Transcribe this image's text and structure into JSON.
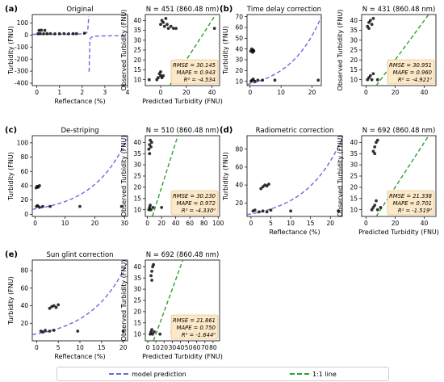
{
  "chart_data": [
    {
      "id": "a1",
      "type": "scatter",
      "panel_label": "(a)",
      "title": "Original",
      "xlabel": "Reflectance (%)",
      "ylabel": "Turbidity (FNU)",
      "xlim": [
        -0.2,
        4.0
      ],
      "ylim": [
        -420,
        170
      ],
      "xticks": [
        0,
        1,
        2,
        3,
        4
      ],
      "yticks": [
        -400,
        -300,
        -200,
        -100,
        0,
        100
      ],
      "model": "asym",
      "points": [
        [
          0.05,
          10
        ],
        [
          0.15,
          12
        ],
        [
          0.3,
          10
        ],
        [
          0.45,
          11
        ],
        [
          0.6,
          12
        ],
        [
          0.8,
          10
        ],
        [
          1.0,
          11
        ],
        [
          1.2,
          12
        ],
        [
          1.4,
          10
        ],
        [
          1.6,
          11
        ],
        [
          1.75,
          11
        ],
        [
          2.1,
          15
        ],
        [
          0.1,
          38
        ],
        [
          0.2,
          40
        ],
        [
          0.35,
          38
        ]
      ]
    },
    {
      "id": "a2",
      "type": "scatter",
      "title": "N = 451 (860.48 nm)",
      "xlabel": "Predicted Turbidity (FNU)",
      "ylabel": "Observed Turbidity (FNU)",
      "xlim": [
        -12,
        46
      ],
      "ylim": [
        7,
        43
      ],
      "xticks": [
        0,
        20,
        40
      ],
      "yticks": [
        10,
        15,
        20,
        25,
        30,
        35,
        40
      ],
      "stats": {
        "rmse": "RMSE = 30.145",
        "mape": "MAPE = 0.943",
        "r2": "R² = -4.534"
      },
      "points": [
        [
          -3,
          10
        ],
        [
          -2,
          11
        ],
        [
          0,
          12
        ],
        [
          1,
          11
        ],
        [
          -1,
          13
        ],
        [
          0,
          14
        ],
        [
          2,
          12
        ],
        [
          0,
          38
        ],
        [
          1,
          40
        ],
        [
          2,
          39
        ],
        [
          3,
          37
        ],
        [
          4,
          41
        ],
        [
          5,
          38
        ],
        [
          6,
          36
        ],
        [
          8,
          37
        ],
        [
          10,
          36
        ],
        [
          12,
          36
        ],
        [
          -9,
          10
        ],
        [
          42,
          36
        ]
      ]
    },
    {
      "id": "b1",
      "type": "scatter",
      "panel_label": "(b)",
      "title": "Time delay correction",
      "xlabel": "",
      "ylabel": "Turbidity (FNU)",
      "xlim": [
        -1,
        23
      ],
      "ylim": [
        6,
        72
      ],
      "xticks": [
        0,
        10,
        20
      ],
      "yticks": [
        10,
        20,
        30,
        40,
        50,
        60,
        70
      ],
      "model": "exp",
      "points": [
        [
          0.2,
          38
        ],
        [
          0.5,
          40
        ],
        [
          0.8,
          37
        ],
        [
          1.0,
          39
        ],
        [
          1.2,
          38
        ],
        [
          0.3,
          10
        ],
        [
          0.6,
          11
        ],
        [
          1.0,
          12
        ],
        [
          1.5,
          10
        ],
        [
          2.5,
          11
        ],
        [
          4,
          11
        ],
        [
          8,
          11
        ],
        [
          22,
          11
        ]
      ]
    },
    {
      "id": "b2",
      "type": "scatter",
      "title": "N = 431 (860.48 nm)",
      "xlabel": "",
      "ylabel": "Observed Turbidity (FNU)",
      "xlim": [
        -3,
        48
      ],
      "ylim": [
        7,
        43
      ],
      "xticks": [
        0,
        20,
        40
      ],
      "yticks": [
        10,
        15,
        20,
        25,
        30,
        35,
        40
      ],
      "stats": {
        "rmse": "RMSE = 30.951",
        "mape": "MAPE = 0.960",
        "r2": "R² = -4.921⁰"
      },
      "points": [
        [
          1,
          37
        ],
        [
          2,
          39
        ],
        [
          3,
          40
        ],
        [
          4,
          38
        ],
        [
          5,
          41
        ],
        [
          2,
          36
        ],
        [
          1,
          10
        ],
        [
          2,
          11
        ],
        [
          3,
          12
        ],
        [
          4,
          10
        ],
        [
          5,
          13
        ],
        [
          8,
          10
        ],
        [
          22,
          10
        ]
      ]
    },
    {
      "id": "c1",
      "type": "scatter",
      "panel_label": "(c)",
      "title": "De-striping",
      "xlabel": "",
      "ylabel": "Turbidity (FNU)",
      "xlim": [
        -1,
        31
      ],
      "ylim": [
        -3,
        110
      ],
      "xticks": [
        0,
        10,
        20,
        30
      ],
      "yticks": [
        0,
        20,
        40,
        60,
        80,
        100
      ],
      "model": "exp",
      "points": [
        [
          0.3,
          37
        ],
        [
          0.6,
          39
        ],
        [
          1.0,
          38
        ],
        [
          1.4,
          40
        ],
        [
          0.4,
          11
        ],
        [
          0.8,
          12
        ],
        [
          1.4,
          10
        ],
        [
          2.5,
          11
        ],
        [
          5,
          11
        ],
        [
          15,
          11
        ],
        [
          29,
          11
        ]
      ]
    },
    {
      "id": "c2",
      "type": "scatter",
      "title": "N = 510 (860.48 nm)",
      "xlabel": "",
      "ylabel": "Observed Turbidity (FNU)",
      "xlim": [
        -3,
        102
      ],
      "ylim": [
        7,
        43
      ],
      "xticks": [
        0,
        20,
        40,
        60,
        80,
        100
      ],
      "yticks": [
        10,
        15,
        20,
        25,
        30,
        35,
        40
      ],
      "stats": {
        "rmse": "RMSE = 30.230",
        "mape": "MAPE = 0.972",
        "r2": "R² = -4.330⁰"
      },
      "points": [
        [
          2,
          37
        ],
        [
          3,
          39
        ],
        [
          4,
          41
        ],
        [
          5,
          38
        ],
        [
          6,
          40
        ],
        [
          3,
          35
        ],
        [
          2,
          10
        ],
        [
          3,
          11
        ],
        [
          4,
          12
        ],
        [
          5,
          10
        ],
        [
          8,
          11
        ],
        [
          20,
          11
        ],
        [
          40,
          11
        ]
      ]
    },
    {
      "id": "d1",
      "type": "scatter",
      "panel_label": "(d)",
      "title": "Radiometric correction",
      "xlabel": "Reflectance (%)",
      "ylabel": "Turbidity (FNU)",
      "xlim": [
        -1,
        23
      ],
      "ylim": [
        5,
        95
      ],
      "xticks": [
        0,
        5,
        10,
        15,
        20
      ],
      "yticks": [
        20,
        40,
        60,
        80
      ],
      "model": "exp",
      "points": [
        [
          2.5,
          36
        ],
        [
          3,
          38
        ],
        [
          3.5,
          40
        ],
        [
          4,
          39
        ],
        [
          4.5,
          41
        ],
        [
          0.5,
          11
        ],
        [
          1,
          12
        ],
        [
          2,
          10
        ],
        [
          3,
          11
        ],
        [
          4,
          10
        ],
        [
          5,
          12
        ],
        [
          10,
          11
        ],
        [
          22,
          11
        ]
      ]
    },
    {
      "id": "d2",
      "type": "scatter",
      "title": "N = 692 (860.48 nm)",
      "xlabel": "Predicted Turbidity (FNU)",
      "ylabel": "Observed Turbidity (FNU)",
      "xlim": [
        -3,
        48
      ],
      "ylim": [
        7,
        43
      ],
      "xticks": [
        0,
        20,
        40
      ],
      "yticks": [
        10,
        15,
        20,
        25,
        30,
        35,
        40
      ],
      "stats": {
        "rmse": "RMSE = 21.338",
        "mape": "MAPE = 0.701",
        "r2": "R² = -1.519⁰"
      },
      "points": [
        [
          5,
          36
        ],
        [
          6,
          38
        ],
        [
          7,
          40
        ],
        [
          8,
          41
        ],
        [
          6,
          35
        ],
        [
          4,
          10
        ],
        [
          5,
          11
        ],
        [
          6,
          12
        ],
        [
          7,
          14
        ],
        [
          8,
          10
        ],
        [
          10,
          11
        ],
        [
          20,
          10
        ],
        [
          35,
          11
        ]
      ]
    },
    {
      "id": "e1",
      "type": "scatter",
      "panel_label": "(e)",
      "title": "Sun glint correction",
      "xlabel": "Reflectance (%)",
      "ylabel": "Turbidity (FNU)",
      "xlim": [
        -1,
        21
      ],
      "ylim": [
        0,
        92
      ],
      "xticks": [
        0,
        5,
        10,
        15,
        20
      ],
      "yticks": [
        20,
        40,
        60,
        80
      ],
      "model": "exp",
      "points": [
        [
          3,
          37
        ],
        [
          3.5,
          39
        ],
        [
          4,
          40
        ],
        [
          4.5,
          38
        ],
        [
          5,
          41
        ],
        [
          1,
          11
        ],
        [
          1.5,
          10
        ],
        [
          2,
          12
        ],
        [
          3,
          11
        ],
        [
          4,
          12
        ],
        [
          9.5,
          11
        ],
        [
          20,
          11
        ]
      ]
    },
    {
      "id": "e2",
      "type": "scatter",
      "title": "N = 692 (860.48 nm)",
      "xlabel": "Predicted Turbidity (FNU)",
      "ylabel": "Observed Turbidity (FNU)",
      "xlim": [
        -3,
        88
      ],
      "ylim": [
        7,
        43
      ],
      "xticks": [
        0,
        10,
        20,
        30,
        40,
        50,
        60,
        70,
        80
      ],
      "yticks": [
        10,
        15,
        20,
        25,
        30,
        35,
        40
      ],
      "stats": {
        "rmse": "RMSE = 21.861",
        "mape": "MAPE = 0.750",
        "r2": "R² = -1.644⁰"
      },
      "points": [
        [
          4,
          36
        ],
        [
          5,
          38
        ],
        [
          6,
          40
        ],
        [
          7,
          41
        ],
        [
          5,
          34
        ],
        [
          3,
          10
        ],
        [
          4,
          11
        ],
        [
          5,
          12
        ],
        [
          6,
          10
        ],
        [
          8,
          11
        ],
        [
          15,
          10
        ],
        [
          30,
          11
        ]
      ]
    }
  ],
  "legend": {
    "model_label": "model prediction",
    "line_label": "1:1 line"
  },
  "colors": {
    "model": "#6a6ae0",
    "one_to_one": "#2ca02c",
    "points": "#000000",
    "stats_box": "#fde8c8"
  }
}
